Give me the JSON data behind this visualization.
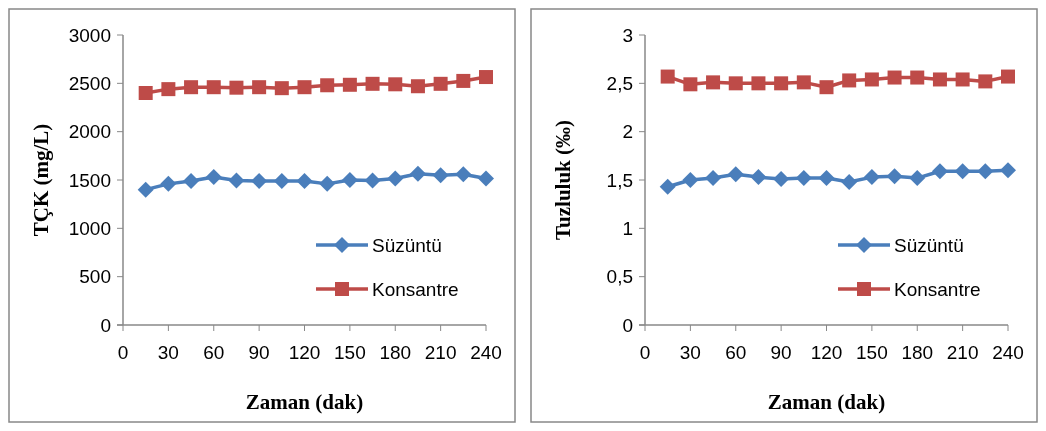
{
  "chart_data": [
    {
      "type": "line",
      "xlabel": "Zaman (dak)",
      "ylabel": "TÇK (mg/L)",
      "x": [
        15,
        30,
        45,
        60,
        75,
        90,
        105,
        120,
        135,
        150,
        165,
        180,
        195,
        210,
        225,
        240
      ],
      "xlim": [
        0,
        240
      ],
      "xticks": [
        0,
        30,
        60,
        90,
        120,
        150,
        180,
        210,
        240
      ],
      "ylim": [
        0,
        3000
      ],
      "yticks": [
        0,
        500,
        1000,
        1500,
        2000,
        2500,
        3000
      ],
      "legend": "bottom right",
      "grid": false,
      "series": [
        {
          "name": "Süzüntü",
          "color": "#4a7ebb",
          "marker": "diamond",
          "values": [
            1400,
            1460,
            1490,
            1530,
            1495,
            1490,
            1490,
            1490,
            1460,
            1500,
            1495,
            1515,
            1565,
            1550,
            1560,
            1515
          ]
        },
        {
          "name": "Konsantre",
          "color": "#be4b48",
          "marker": "square",
          "values": [
            2400,
            2440,
            2460,
            2460,
            2455,
            2460,
            2450,
            2460,
            2480,
            2485,
            2495,
            2490,
            2470,
            2495,
            2525,
            2565
          ]
        }
      ]
    },
    {
      "type": "line",
      "xlabel": "Zaman (dak)",
      "ylabel": "Tuzluluk (‰)",
      "x": [
        15,
        30,
        45,
        60,
        75,
        90,
        105,
        120,
        135,
        150,
        165,
        180,
        195,
        210,
        225,
        240
      ],
      "xlim": [
        0,
        240
      ],
      "xticks": [
        0,
        30,
        60,
        90,
        120,
        150,
        180,
        210,
        240
      ],
      "ylim": [
        0,
        3
      ],
      "yticks": [
        0,
        {
          "value": 0.5,
          "label": "0,5"
        },
        1,
        {
          "value": 1.5,
          "label": "1,5"
        },
        2,
        {
          "value": 2.5,
          "label": "2,5"
        },
        3
      ],
      "legend": "bottom right",
      "grid": false,
      "series": [
        {
          "name": "Süzüntü",
          "color": "#4a7ebb",
          "marker": "diamond",
          "values": [
            1.43,
            1.5,
            1.52,
            1.56,
            1.53,
            1.51,
            1.52,
            1.52,
            1.48,
            1.53,
            1.54,
            1.52,
            1.59,
            1.59,
            1.59,
            1.6
          ]
        },
        {
          "name": "Konsantre",
          "color": "#be4b48",
          "marker": "square",
          "values": [
            2.57,
            2.49,
            2.51,
            2.5,
            2.5,
            2.5,
            2.51,
            2.46,
            2.53,
            2.54,
            2.56,
            2.56,
            2.54,
            2.54,
            2.52,
            2.57
          ]
        }
      ]
    }
  ]
}
